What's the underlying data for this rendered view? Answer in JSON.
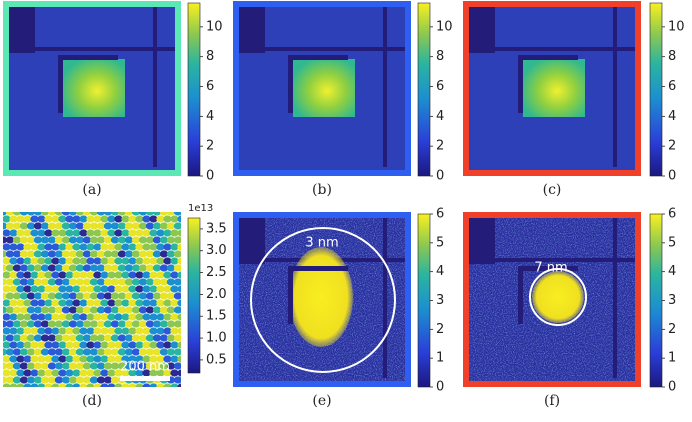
{
  "panels": [
    {
      "label": "(a)",
      "colorbar": {
        "range": [
          0,
          11.6
        ],
        "ticks": [
          0,
          2,
          4,
          6,
          8,
          10
        ]
      }
    },
    {
      "label": "(b)",
      "colorbar": {
        "range": [
          0,
          11.6
        ],
        "ticks": [
          0,
          2,
          4,
          6,
          8,
          10
        ]
      }
    },
    {
      "label": "(c)",
      "colorbar": {
        "range": [
          0,
          11.6
        ],
        "ticks": [
          0,
          2,
          4,
          6,
          8,
          10
        ]
      }
    },
    {
      "label": "(d)",
      "colorbar": {
        "range": [
          0.2,
          3.75
        ],
        "ticks": [
          0.5,
          {
            "value": 1,
            "label": "1.0"
          },
          1.5,
          {
            "value": 2,
            "label": "2.0"
          },
          2.5,
          {
            "value": 3,
            "label": "3.0"
          },
          3.5
        ],
        "multiplier": "1e13"
      },
      "scale_bar": "200 nm"
    },
    {
      "label": "(e)",
      "colorbar": {
        "range": [
          0,
          6
        ],
        "ticks": [
          0,
          1,
          2,
          3,
          4,
          5,
          6
        ]
      },
      "annotation": "3 nm"
    },
    {
      "label": "(f)",
      "colorbar": {
        "range": [
          0,
          6
        ],
        "ticks": [
          0,
          1,
          2,
          3,
          4,
          5,
          6
        ]
      },
      "annotation": "7 nm"
    }
  ]
}
